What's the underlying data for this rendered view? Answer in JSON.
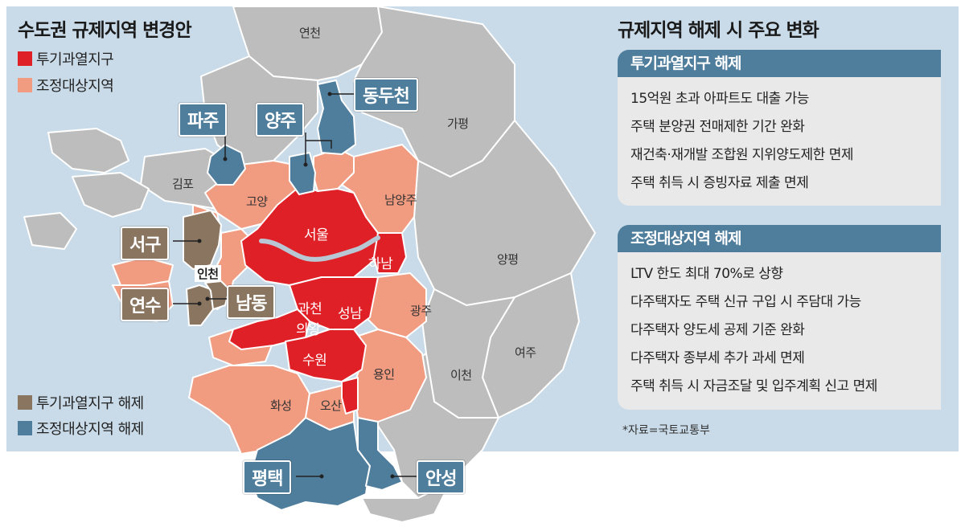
{
  "map_title": "수도권 규제지역 변경안",
  "legend_top": [
    {
      "label": "투기과열지구",
      "color": "#e02027"
    },
    {
      "label": "조정대상지역",
      "color": "#f19b80"
    }
  ],
  "legend_bottom": [
    {
      "label": "투기과열지구 해제",
      "color": "#8a7560"
    },
    {
      "label": "조정대상지역 해제",
      "color": "#4f7d9c"
    }
  ],
  "region_labels": {
    "yeoncheon": "연천",
    "gapyeong": "가평",
    "gimpo": "김포",
    "goyang": "고양",
    "namyangju": "남양주",
    "seoul": "서울",
    "hanam": "하남",
    "yangpyeong": "양평",
    "incheon": "인천",
    "gwacheon": "과천",
    "seongnam": "성남",
    "uiwang": "의왕",
    "gwangju": "광주",
    "suwon": "수원",
    "yeoju": "여주",
    "yongin": "용인",
    "icheon": "이천",
    "hwaseong": "화성",
    "osan": "오산"
  },
  "boxed_labels": {
    "paju": "파주",
    "yangju": "양주",
    "dongducheon": "동두천",
    "seogu": "서구",
    "yeonsu": "연수",
    "namdong": "남동",
    "pyeongtaek": "평택",
    "anseong": "안성"
  },
  "colors": {
    "sea": "#c9dbe8",
    "other_land": "#bdbdbd",
    "speculative": "#e02027",
    "adjustment": "#f19b80",
    "speculative_lifted": "#8a7560",
    "adjustment_lifted": "#4f7d9c",
    "river": "#b9c7d4"
  },
  "panel": {
    "title": "규제지역 해제 시 주요 변화",
    "sections": [
      {
        "heading": "투기과열지구 해제",
        "items": [
          "15억원 초과 아파트도 대출 가능",
          "주택 분양권 전매제한 기간 완화",
          "재건축·재개발 조합원 지위양도제한 면제",
          "주택 취득 시 증빙자료 제출 면제"
        ]
      },
      {
        "heading": "조정대상지역 해제",
        "items": [
          "LTV 한도 최대 70%로 상향",
          "다주택자도 주택 신규 구입 시 주담대 가능",
          "다주택자 양도세 공제 기준 완화",
          "다주택자 종부세 추가 과세 면제",
          "주택 취득 시 자금조달 및 입주계획 신고 면제"
        ]
      }
    ],
    "source": "*자료=국토교통부"
  }
}
